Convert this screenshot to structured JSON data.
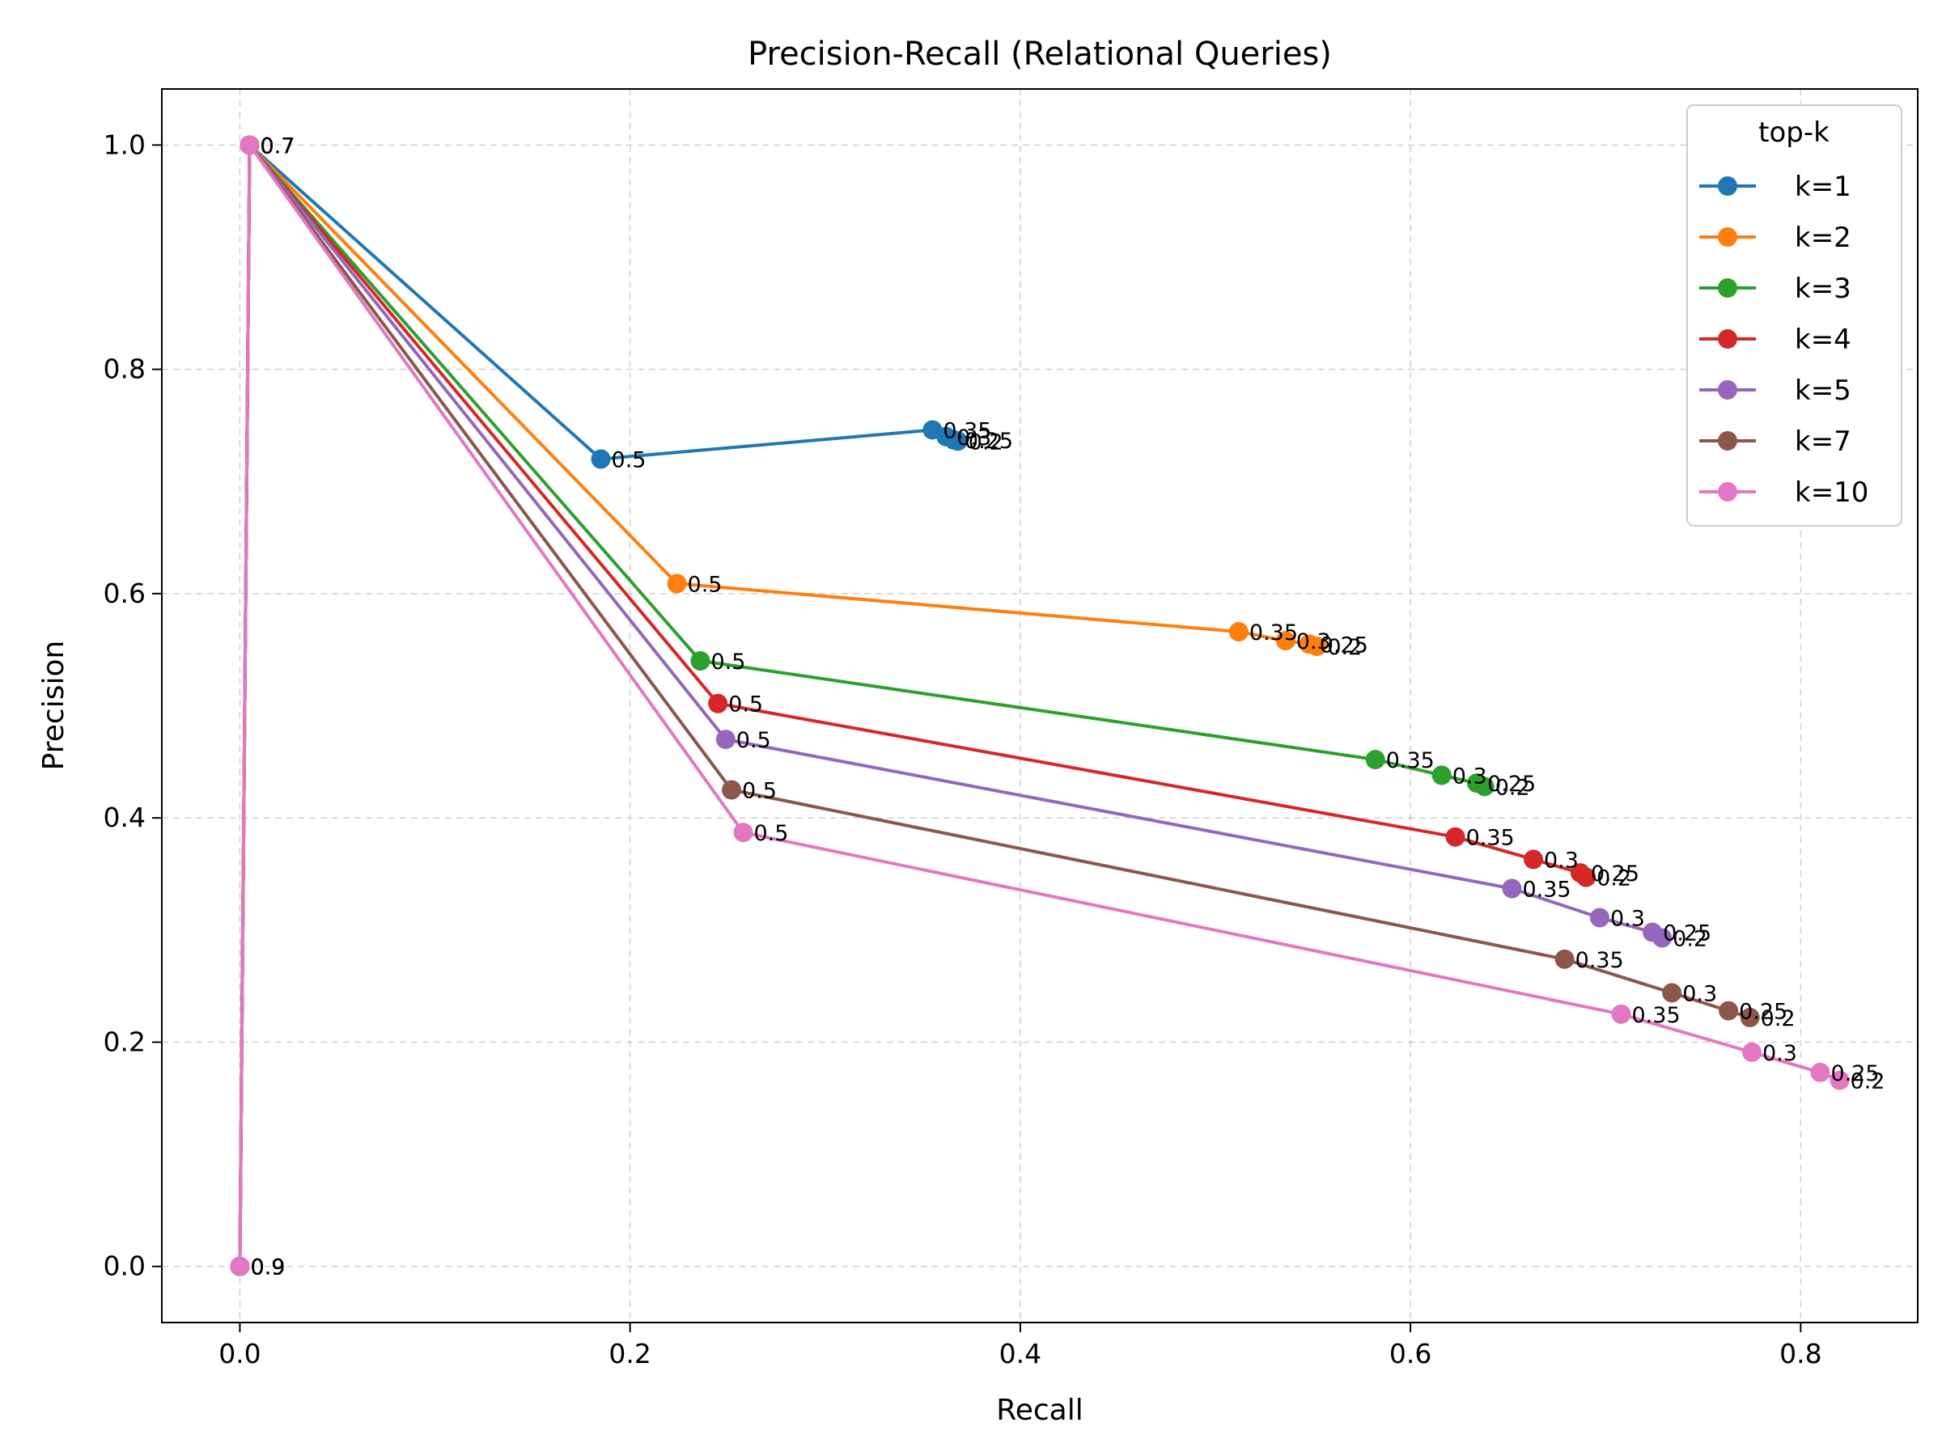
{
  "chart_data": {
    "type": "line",
    "title": "Precision-Recall (Relational Queries)",
    "xlabel": "Recall",
    "ylabel": "Precision",
    "xlim": [
      -0.04,
      0.86
    ],
    "ylim": [
      -0.05,
      1.05
    ],
    "xticks": [
      0.0,
      0.2,
      0.4,
      0.6,
      0.8
    ],
    "yticks": [
      0.0,
      0.2,
      0.4,
      0.6,
      0.8,
      1.0
    ],
    "xtick_labels": [
      "0.0",
      "0.2",
      "0.4",
      "0.6",
      "0.8"
    ],
    "ytick_labels": [
      "0.0",
      "0.2",
      "0.4",
      "0.6",
      "0.8",
      "1.0"
    ],
    "grid": true,
    "legend": {
      "title": "top-k",
      "placement": "top-right"
    },
    "series": [
      {
        "name": "k=1",
        "color": "#1f77b4",
        "points": [
          {
            "x": 0.0,
            "y": 0.0,
            "label": "0.9"
          },
          {
            "x": 0.005,
            "y": 1.0,
            "label": "0.7"
          },
          {
            "x": 0.185,
            "y": 0.72,
            "label": "0.5"
          },
          {
            "x": 0.355,
            "y": 0.746,
            "label": "0.35"
          },
          {
            "x": 0.362,
            "y": 0.74,
            "label": "0.3"
          },
          {
            "x": 0.366,
            "y": 0.737,
            "label": "0.25"
          },
          {
            "x": 0.368,
            "y": 0.736,
            "label": "0.2"
          }
        ]
      },
      {
        "name": "k=2",
        "color": "#ff7f0e",
        "points": [
          {
            "x": 0.0,
            "y": 0.0,
            "label": "0.9"
          },
          {
            "x": 0.005,
            "y": 1.0,
            "label": "0.7"
          },
          {
            "x": 0.224,
            "y": 0.609,
            "label": "0.5"
          },
          {
            "x": 0.512,
            "y": 0.566,
            "label": "0.35"
          },
          {
            "x": 0.536,
            "y": 0.558,
            "label": "0.3"
          },
          {
            "x": 0.548,
            "y": 0.555,
            "label": "0.25"
          },
          {
            "x": 0.552,
            "y": 0.553,
            "label": "0.2"
          }
        ]
      },
      {
        "name": "k=3",
        "color": "#2ca02c",
        "points": [
          {
            "x": 0.0,
            "y": 0.0,
            "label": "0.9"
          },
          {
            "x": 0.005,
            "y": 1.0,
            "label": "0.7"
          },
          {
            "x": 0.236,
            "y": 0.54,
            "label": "0.5"
          },
          {
            "x": 0.582,
            "y": 0.452,
            "label": "0.35"
          },
          {
            "x": 0.616,
            "y": 0.438,
            "label": "0.3"
          },
          {
            "x": 0.634,
            "y": 0.431,
            "label": "0.25"
          },
          {
            "x": 0.638,
            "y": 0.428,
            "label": "0.2"
          }
        ]
      },
      {
        "name": "k=4",
        "color": "#d62728",
        "points": [
          {
            "x": 0.0,
            "y": 0.0,
            "label": "0.9"
          },
          {
            "x": 0.005,
            "y": 1.0,
            "label": "0.7"
          },
          {
            "x": 0.245,
            "y": 0.502,
            "label": "0.5"
          },
          {
            "x": 0.623,
            "y": 0.383,
            "label": "0.35"
          },
          {
            "x": 0.663,
            "y": 0.363,
            "label": "0.3"
          },
          {
            "x": 0.687,
            "y": 0.351,
            "label": "0.25"
          },
          {
            "x": 0.69,
            "y": 0.347,
            "label": "0.2"
          }
        ]
      },
      {
        "name": "k=5",
        "color": "#9467bd",
        "points": [
          {
            "x": 0.0,
            "y": 0.0,
            "label": "0.9"
          },
          {
            "x": 0.005,
            "y": 1.0,
            "label": "0.7"
          },
          {
            "x": 0.249,
            "y": 0.47,
            "label": "0.5"
          },
          {
            "x": 0.652,
            "y": 0.337,
            "label": "0.35"
          },
          {
            "x": 0.697,
            "y": 0.311,
            "label": "0.3"
          },
          {
            "x": 0.724,
            "y": 0.298,
            "label": "0.25"
          },
          {
            "x": 0.729,
            "y": 0.293,
            "label": "0.2"
          }
        ]
      },
      {
        "name": "k=7",
        "color": "#8c564b",
        "points": [
          {
            "x": 0.0,
            "y": 0.0,
            "label": "0.9"
          },
          {
            "x": 0.005,
            "y": 1.0,
            "label": "0.7"
          },
          {
            "x": 0.252,
            "y": 0.425,
            "label": "0.5"
          },
          {
            "x": 0.679,
            "y": 0.274,
            "label": "0.35"
          },
          {
            "x": 0.734,
            "y": 0.244,
            "label": "0.3"
          },
          {
            "x": 0.763,
            "y": 0.228,
            "label": "0.25"
          },
          {
            "x": 0.774,
            "y": 0.222,
            "label": "0.2"
          }
        ]
      },
      {
        "name": "k=10",
        "color": "#e377c2",
        "points": [
          {
            "x": 0.0,
            "y": 0.0,
            "label": "0.9"
          },
          {
            "x": 0.005,
            "y": 1.0,
            "label": "0.7"
          },
          {
            "x": 0.258,
            "y": 0.387,
            "label": "0.5"
          },
          {
            "x": 0.708,
            "y": 0.225,
            "label": "0.35"
          },
          {
            "x": 0.775,
            "y": 0.191,
            "label": "0.3"
          },
          {
            "x": 0.81,
            "y": 0.173,
            "label": "0.25"
          },
          {
            "x": 0.82,
            "y": 0.166,
            "label": "0.2"
          }
        ]
      }
    ]
  }
}
